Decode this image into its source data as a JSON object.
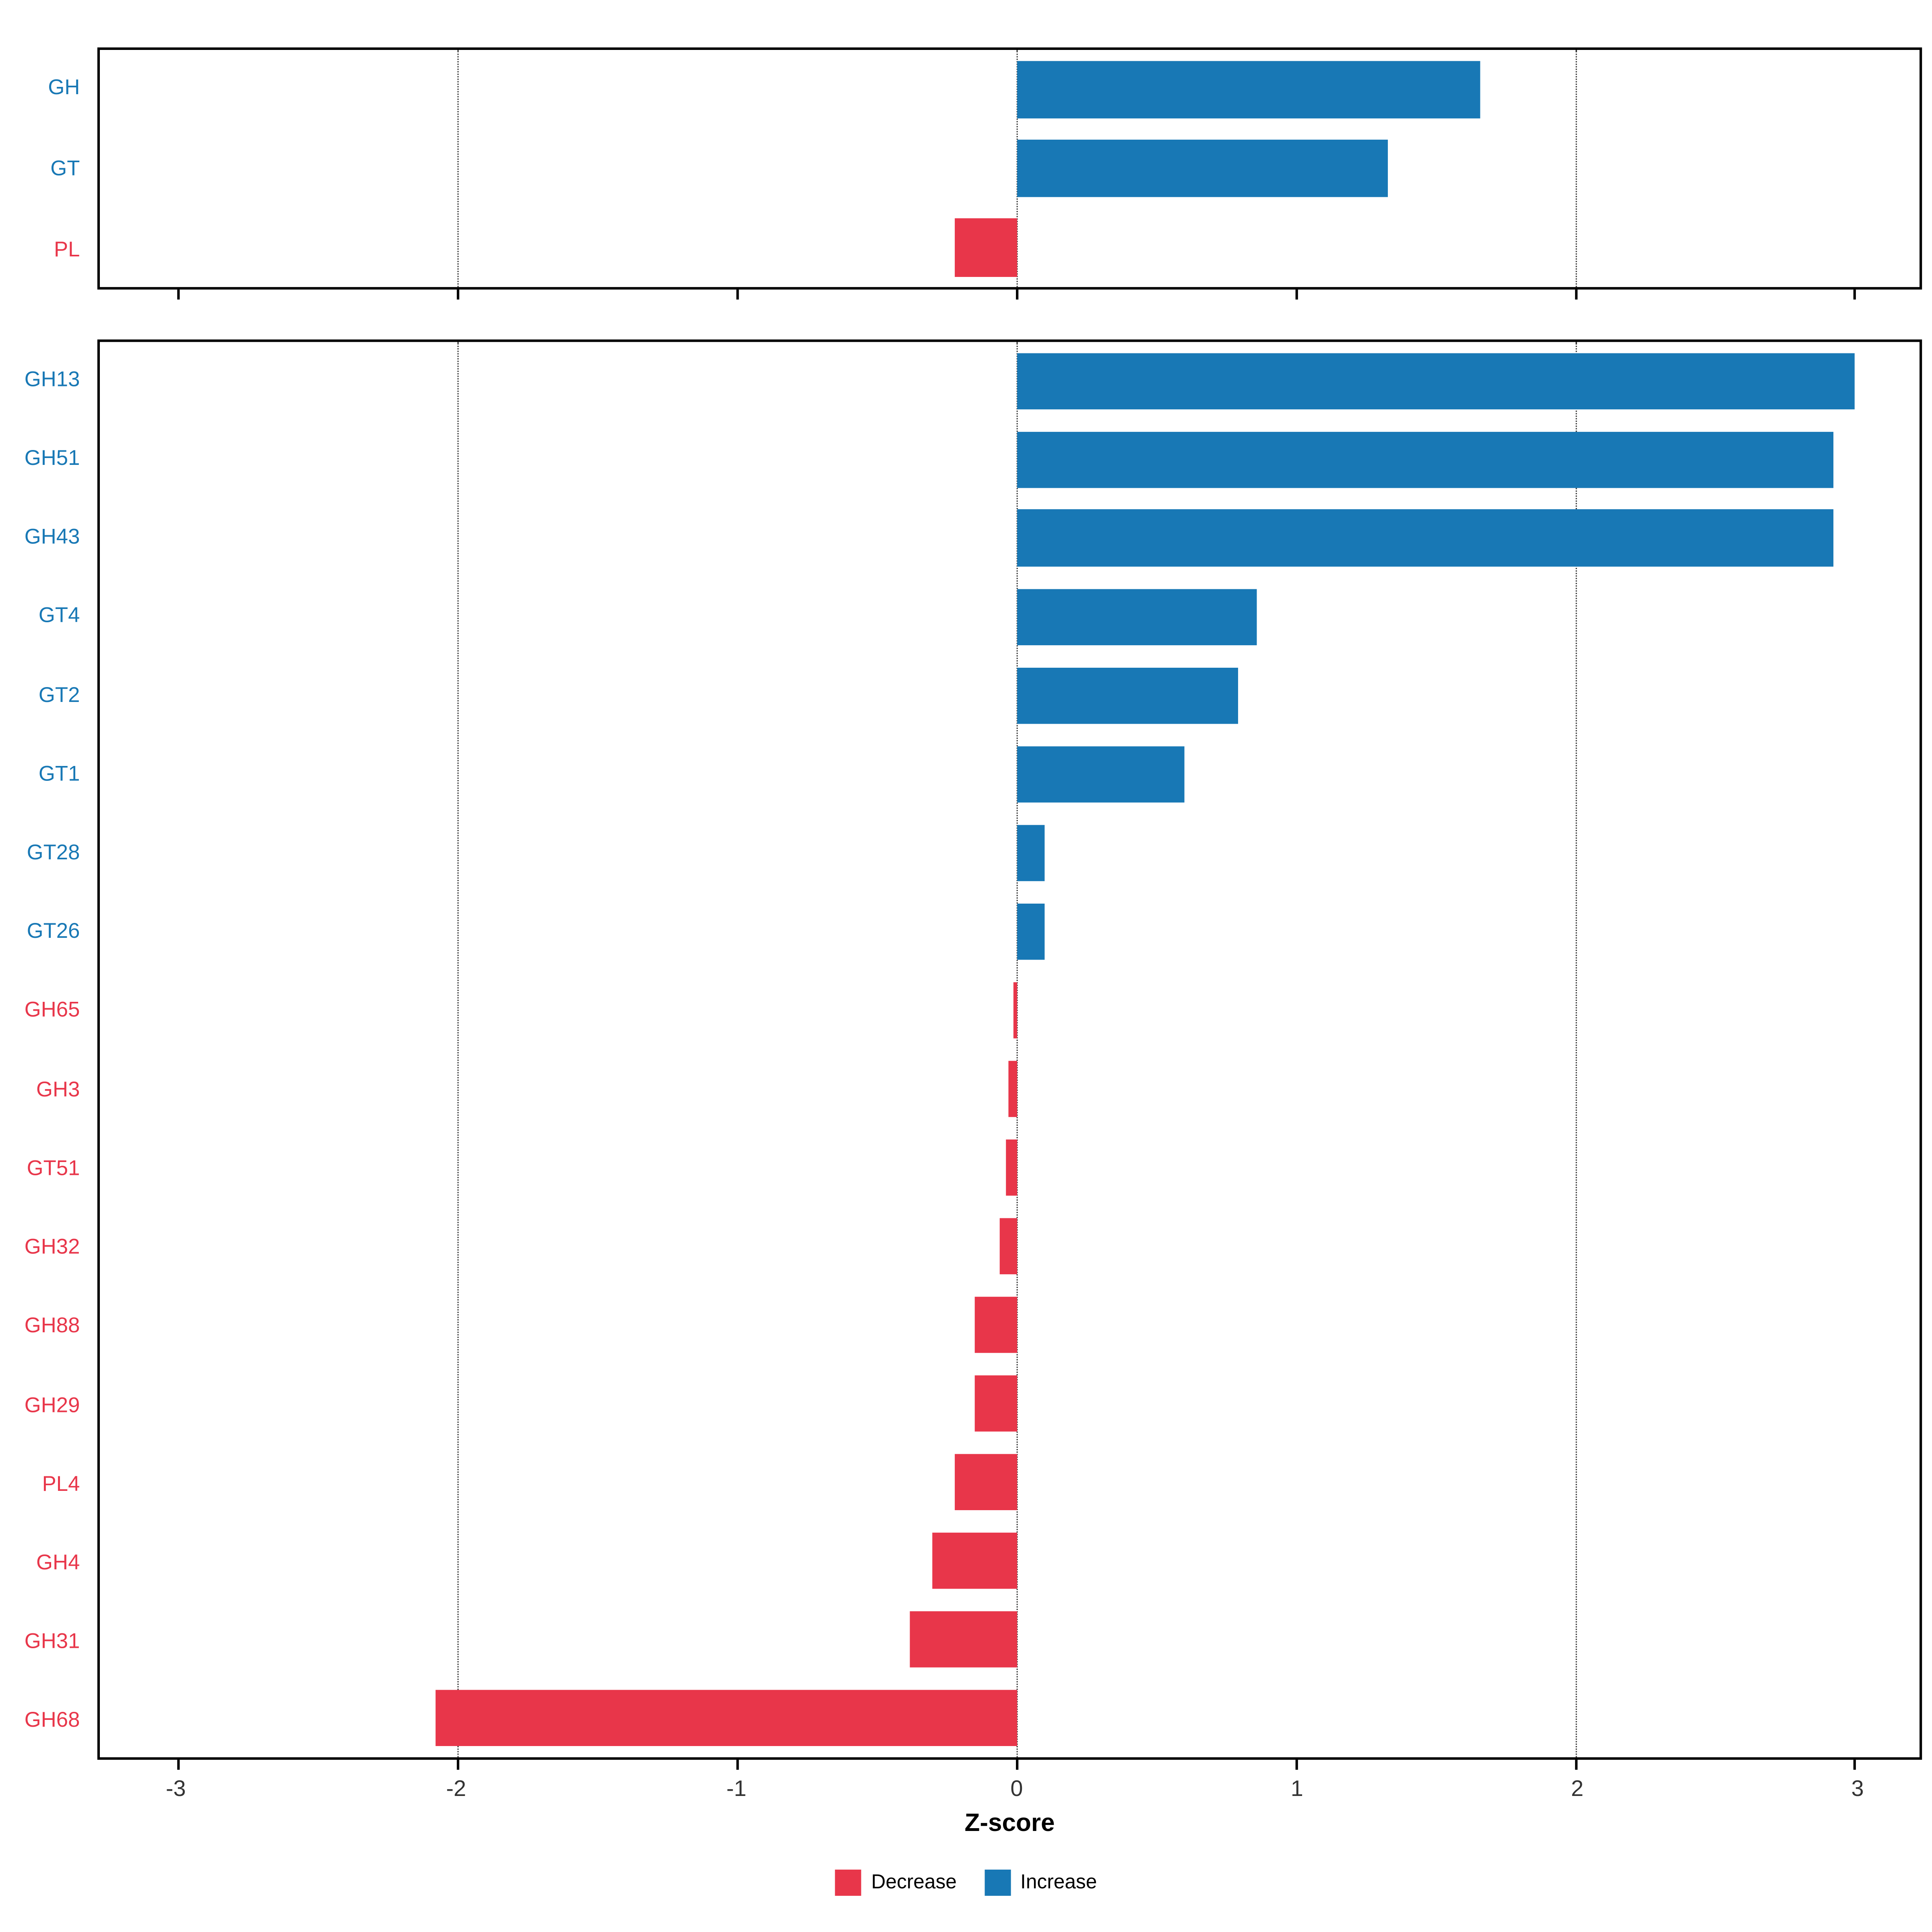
{
  "chart_data": {
    "type": "bar",
    "orientation": "horizontal",
    "title": "",
    "xlabel": "Z-score",
    "xlim": [
      -3.28,
      3.23
    ],
    "x_ticks": [
      -3,
      -2,
      -1,
      0,
      1,
      2,
      3
    ],
    "gridlines": [
      -2,
      0,
      2
    ],
    "grid_style": "dotted",
    "colors": {
      "increase": "#1878b5",
      "decrease": "#e8364a",
      "panel_border": "#000000",
      "background": "#ffffff"
    },
    "panels": [
      {
        "id": "class",
        "categories": [
          "GH",
          "GT",
          "PL"
        ],
        "values": [
          1.66,
          1.33,
          -0.22
        ]
      },
      {
        "id": "family",
        "categories": [
          "GH13",
          "GH51",
          "GH43",
          "GT4",
          "GT2",
          "GT1",
          "GT28",
          "GT26",
          "GH65",
          "GH3",
          "GT51",
          "GH32",
          "GH88",
          "GH29",
          "PL4",
          "GH4",
          "GH31",
          "GH68"
        ],
        "values": [
          3.0,
          2.92,
          2.92,
          0.86,
          0.79,
          0.6,
          0.1,
          0.1,
          -0.01,
          -0.03,
          -0.04,
          -0.06,
          -0.15,
          -0.15,
          -0.22,
          -0.3,
          -0.38,
          -2.08
        ]
      }
    ],
    "legend": [
      {
        "label": "Decrease",
        "direction": "decrease"
      },
      {
        "label": "Increase",
        "direction": "increase"
      }
    ]
  }
}
